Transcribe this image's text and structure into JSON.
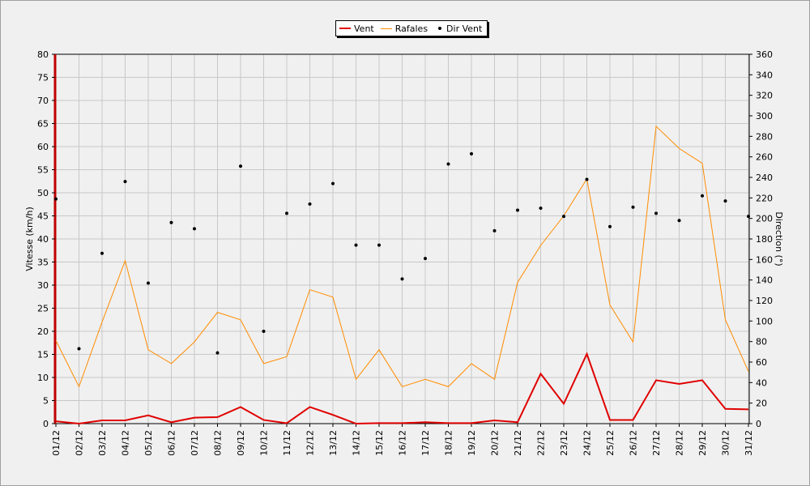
{
  "chart_data": {
    "type": "line",
    "xlabel": "",
    "ylabel": "Vitesse (km/h)",
    "y2label": "Direction (°)",
    "categories": [
      "01/12",
      "02/12",
      "03/12",
      "04/12",
      "05/12",
      "06/12",
      "07/12",
      "08/12",
      "09/12",
      "10/12",
      "11/12",
      "12/12",
      "13/12",
      "14/12",
      "15/12",
      "16/12",
      "17/12",
      "18/12",
      "19/12",
      "20/12",
      "21/12",
      "22/12",
      "23/12",
      "24/12",
      "25/12",
      "26/12",
      "27/12",
      "28/12",
      "29/12",
      "30/12",
      "31/12"
    ],
    "ylim": [
      0,
      80
    ],
    "y2lim": [
      0,
      360
    ],
    "yticks": [
      "0",
      "5",
      "10",
      "15",
      "20",
      "25",
      "30",
      "35",
      "40",
      "45",
      "50",
      "55",
      "60",
      "65",
      "70",
      "75",
      "80"
    ],
    "y2ticks": [
      "0",
      "20",
      "40",
      "60",
      "80",
      "100",
      "120",
      "140",
      "160",
      "180",
      "200",
      "220",
      "240",
      "260",
      "280",
      "300",
      "320",
      "340",
      "360"
    ],
    "grid": true,
    "legend_position": "top-center",
    "series": [
      {
        "name": "Vent",
        "axis": "left",
        "color": "#e00000",
        "values": [
          0.5,
          0,
          0.7,
          0.7,
          1.8,
          0.3,
          1.3,
          1.4,
          3.6,
          0.8,
          0.1,
          3.6,
          1.9,
          0,
          0.1,
          0.1,
          0.3,
          0.1,
          0.1,
          0.7,
          0.3,
          10.8,
          4.3,
          15.1,
          0.8,
          0.8,
          9.4,
          8.6,
          9.4,
          3.2,
          3.1
        ]
      },
      {
        "name": "Rafales",
        "axis": "left",
        "color": "#ff8c00",
        "values": [
          18,
          8,
          22,
          35.3,
          16,
          13,
          17.7,
          24.1,
          22.5,
          13,
          14.5,
          29,
          27.4,
          9.6,
          16,
          8,
          9.6,
          8,
          13,
          9.6,
          30.6,
          38.6,
          45,
          53,
          25.7,
          17.7,
          64.4,
          59.6,
          56.4,
          22.5,
          11.3
        ]
      },
      {
        "name": "Dir Vent",
        "axis": "right",
        "color": "#000000",
        "values": [
          219,
          73,
          166,
          236,
          137,
          196,
          190,
          69,
          251,
          90,
          205,
          214,
          234,
          174,
          174,
          141,
          161,
          253,
          263,
          188,
          208,
          210,
          202,
          238,
          192,
          211,
          205,
          198,
          222,
          217,
          202
        ]
      }
    ]
  }
}
